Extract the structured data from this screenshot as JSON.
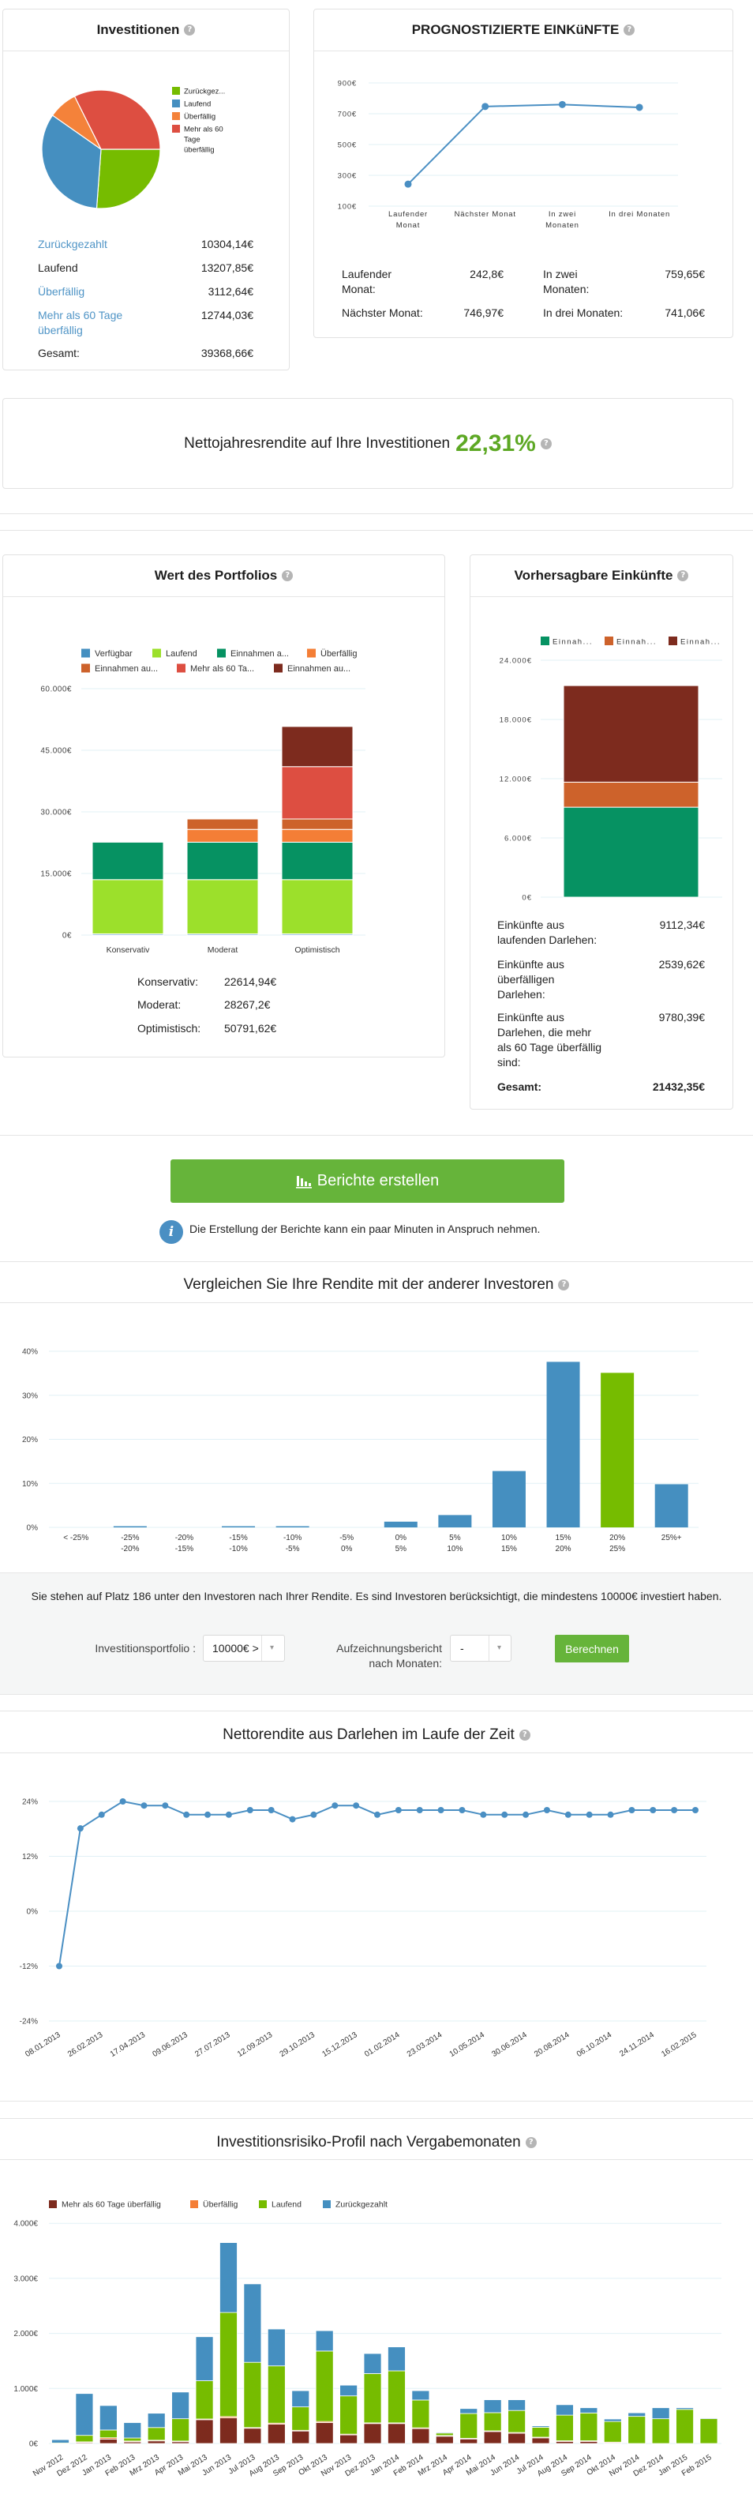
{
  "investments_card": {
    "rows": [
      {
        "label": "Zurückgezahlt",
        "value": "10304,14€"
      },
      {
        "label": "Laufend",
        "value": "13207,85€"
      },
      {
        "label": "Überfällig",
        "value": "3112,64€"
      },
      {
        "label": "Mehr als 60 Tage überfällig",
        "value": "12744,03€"
      }
    ],
    "total_label": "Gesamt:",
    "total_value": "39368,66€"
  },
  "forecast_card": {
    "rows": [
      {
        "label": "Laufender Monat:",
        "value": "242,8€"
      },
      {
        "label": "Nächster Monat:",
        "value": "746,97€"
      },
      {
        "label": "In zwei Monaten:",
        "value": "759,65€"
      },
      {
        "label": "In drei Monaten:",
        "value": "741,06€"
      }
    ]
  },
  "annual_return": {
    "label": "Nettojahresrendite auf Ihre Investitionen",
    "value": "22,31%"
  },
  "portfolio_card": {
    "rows": [
      {
        "label": "Konservativ:",
        "value": "22614,94€"
      },
      {
        "label": "Moderat:",
        "value": "28267,2€"
      },
      {
        "label": "Optimistisch:",
        "value": "50791,62€"
      }
    ]
  },
  "predictable_card": {
    "rows": [
      {
        "label": "Einkünfte aus laufenden Darlehen:",
        "value": "9112,34€"
      },
      {
        "label": "Einkünfte aus überfälligen Darlehen:",
        "value": "2539,62€"
      },
      {
        "label": "Einkünfte aus Darlehen, die mehr als 60 Tage überfällig sind:",
        "value": "9780,39€"
      }
    ],
    "total_label": "Gesamt:",
    "total_value": "21432,35€"
  },
  "reports": {
    "button_label": "Berichte erstellen",
    "info_text": "Die Erstellung der Berichte kann ein paar Minuten in Anspruch nehmen."
  },
  "compare": {
    "ranking_text": "Sie stehen auf Platz 186 unter den Investoren nach Ihrer Rendite. Es sind Investoren berücksichtigt, die mindestens 10000€ investiert haben.",
    "portfolio_label": "Investitionsportfolio :",
    "portfolio_value": "10000€ >",
    "months_label": "Aufzeichnungsbericht nach Monaten:",
    "months_value": "-",
    "calculate_button": "Berechnen"
  },
  "colors": {
    "accent_green": "#66b43a",
    "return_green": "#5da824",
    "link_blue": "#4f94c6",
    "info_blue": "#4a8fc3"
  },
  "chart_data": [
    {
      "type": "pie",
      "title": "Investitionen",
      "legend": [
        "Zurückgez...",
        "Laufend",
        "Überfällig",
        "Mehr als 60 Tage überfällig"
      ],
      "values": [
        10304.14,
        13207.85,
        3112.64,
        12744.03
      ],
      "colors": [
        "#76bc00",
        "#458fc0",
        "#f4823a",
        "#dd4e41"
      ],
      "legend_position": "right"
    },
    {
      "type": "line",
      "title": "PROGNOSTIZIERTE EINKüNFTE",
      "categories": [
        "Laufender Monat",
        "Nächster Monat",
        "In zwei Monaten",
        "In drei Monaten"
      ],
      "values": [
        242.8,
        746.97,
        759.65,
        741.06
      ],
      "yticks": [
        100,
        300,
        500,
        700,
        900
      ],
      "ytick_labels": [
        "100€",
        "300€",
        "500€",
        "700€",
        "900€"
      ],
      "ylim": [
        100,
        900
      ],
      "grid": true,
      "color": "#4a8fc3"
    },
    {
      "type": "bar",
      "stacked": true,
      "title": "Wert des Portfolios",
      "categories": [
        "Konservativ",
        "Moderat",
        "Optimistisch"
      ],
      "series": [
        {
          "legend": "Verfügbar",
          "color": "#458fc0",
          "values": [
            294.75,
            294.75,
            294.75
          ]
        },
        {
          "legend": "Laufend",
          "color": "#9ce02b",
          "values": [
            13207.85,
            13207.85,
            13207.85
          ]
        },
        {
          "legend": "Einnahmen a...",
          "color": "#069262",
          "values": [
            9112.34,
            9112.34,
            9112.34
          ]
        },
        {
          "legend": "Überfällig",
          "color": "#f47e36",
          "values": [
            0,
            3112.64,
            3112.64
          ]
        },
        {
          "legend": "Einnahmen au...",
          "color": "#cd622b",
          "values": [
            0,
            2539.62,
            2539.62
          ]
        },
        {
          "legend": "Mehr als 60 Ta...",
          "color": "#dd4e41",
          "values": [
            0,
            0,
            12744.03
          ]
        },
        {
          "legend": "Einnahmen au...",
          "color": "#7d2b1e",
          "values": [
            0,
            0,
            9780.39
          ]
        }
      ],
      "yticks": [
        0,
        15000,
        30000,
        45000,
        60000
      ],
      "ytick_labels": [
        "0€",
        "15.000€",
        "30.000€",
        "45.000€",
        "60.000€"
      ],
      "ylim": [
        0,
        60000
      ],
      "grid": true,
      "legend_position": "top"
    },
    {
      "type": "bar",
      "stacked": true,
      "title": "Vorhersagbare Einkünfte",
      "series": [
        {
          "legend": "Einnah...",
          "color": "#069262",
          "values": [
            9112.34
          ]
        },
        {
          "legend": "Einnah...",
          "color": "#cd622b",
          "values": [
            2539.62
          ]
        },
        {
          "legend": "Einnah...",
          "color": "#7d2b1e",
          "values": [
            9780.39
          ]
        }
      ],
      "yticks": [
        0,
        6000,
        12000,
        18000,
        24000
      ],
      "ytick_labels": [
        "0€",
        "6.000€",
        "12.000€",
        "18.000€",
        "24.000€"
      ],
      "ylim": [
        0,
        24000
      ],
      "grid": true,
      "legend_position": "top"
    },
    {
      "type": "bar",
      "title": "Vergleichen Sie Ihre Rendite mit der anderer Investoren",
      "categories": [
        "< -25%",
        "-25%\n-20%",
        "-20%\n-15%",
        "-15%\n-10%",
        "-10%\n-5%",
        "-5%\n0%",
        "0%\n5%",
        "5%\n10%",
        "10%\n15%",
        "15%\n20%",
        "20%\n25%",
        "25%+"
      ],
      "values": [
        0,
        0.2,
        0,
        0.2,
        0.2,
        0,
        1.3,
        2.8,
        12.8,
        37.6,
        35.1,
        9.8
      ],
      "highlight_index": 10,
      "color": "#458fc0",
      "highlight_color": "#76bc00",
      "yticks": [
        0,
        10,
        20,
        30,
        40
      ],
      "ytick_labels": [
        "0%",
        "10%",
        "20%",
        "30%",
        "40%"
      ],
      "ylim": [
        0,
        40
      ],
      "grid": true
    },
    {
      "type": "line",
      "title": "Nettorendite aus Darlehen im Laufe der Zeit",
      "x_labels": [
        "08.01.2013",
        "26.02.2013",
        "17.04.2013",
        "09.06.2013",
        "27.07.2013",
        "12.09.2013",
        "29.10.2013",
        "15.12.2013",
        "01.02.2014",
        "23.03.2014",
        "10.05.2014",
        "30.06.2014",
        "20.08.2014",
        "06.10.2014",
        "24.11.2014",
        "16.02.2015"
      ],
      "values": [
        -12,
        18.1,
        21.1,
        24.0,
        23.1,
        23.1,
        21.1,
        21.1,
        21.1,
        22.1,
        22.1,
        20.1,
        21.1,
        23.1,
        23.1,
        21.1,
        22.1,
        22.1,
        22.1,
        22.1,
        21.1,
        21.1,
        21.1,
        22.1,
        21.1,
        21.1,
        21.1,
        22.1,
        22.1,
        22.1,
        22.1
      ],
      "yticks": [
        -24,
        -12,
        0,
        12,
        24
      ],
      "ytick_labels": [
        "-24%",
        "-12%",
        "0%",
        "12%",
        "24%"
      ],
      "ylim": [
        -24,
        24
      ],
      "grid": true,
      "color": "#4a8fc3"
    },
    {
      "type": "bar",
      "stacked": true,
      "title": "Investitionsrisiko-Profil nach Vergabemonaten",
      "categories": [
        "Nov 2012",
        "Dez 2012",
        "Jan 2013",
        "Feb 2013",
        "Mrz 2013",
        "Apr 2013",
        "Mai 2013",
        "Jun 2013",
        "Jul 2013",
        "Aug 2013",
        "Sep 2013",
        "Okt 2013",
        "Nov 2013",
        "Dez 2013",
        "Jan 2014",
        "Feb 2014",
        "Mrz 2014",
        "Apr 2014",
        "Mai 2014",
        "Jun 2014",
        "Jul 2014",
        "Aug 2014",
        "Sep 2014",
        "Okt 2014",
        "Nov 2014",
        "Dez 2014",
        "Jan 2015",
        "Feb 2015"
      ],
      "series": [
        {
          "legend": "Mehr als 60 Tage überfällig",
          "color": "#7d2b1e",
          "values": [
            0,
            25,
            80,
            30,
            50,
            40,
            440,
            465,
            280,
            350,
            235,
            380,
            165,
            365,
            370,
            280,
            140,
            90,
            225,
            195,
            110,
            45,
            45,
            20,
            0,
            0,
            0,
            0
          ]
        },
        {
          "legend": "Überfällig",
          "color": "#f47e36",
          "values": [
            0,
            5,
            25,
            15,
            10,
            5,
            5,
            25,
            10,
            20,
            5,
            20,
            5,
            10,
            5,
            5,
            5,
            5,
            5,
            5,
            5,
            5,
            5,
            5,
            0,
            0,
            0,
            0
          ]
        },
        {
          "legend": "Laufend",
          "color": "#76bc00",
          "values": [
            10,
            118,
            140,
            55,
            230,
            405,
            695,
            1890,
            1185,
            1040,
            425,
            1280,
            695,
            895,
            945,
            505,
            45,
            450,
            330,
            400,
            180,
            465,
            505,
            375,
            493,
            450,
            620,
            455
          ]
        },
        {
          "legend": "Zurückgezahlt",
          "color": "#458fc0",
          "values": [
            60,
            760,
            445,
            280,
            260,
            485,
            800,
            1270,
            1425,
            670,
            295,
            370,
            195,
            365,
            435,
            170,
            15,
            90,
            235,
            195,
            25,
            190,
            95,
            45,
            65,
            200,
            30,
            10
          ]
        }
      ],
      "yticks": [
        0,
        1000,
        2000,
        3000,
        4000
      ],
      "ytick_labels": [
        "0€",
        "1.000€",
        "2.000€",
        "3.000€",
        "4.000€"
      ],
      "ylim": [
        0,
        4000
      ],
      "grid": true,
      "legend_position": "top-left"
    }
  ]
}
